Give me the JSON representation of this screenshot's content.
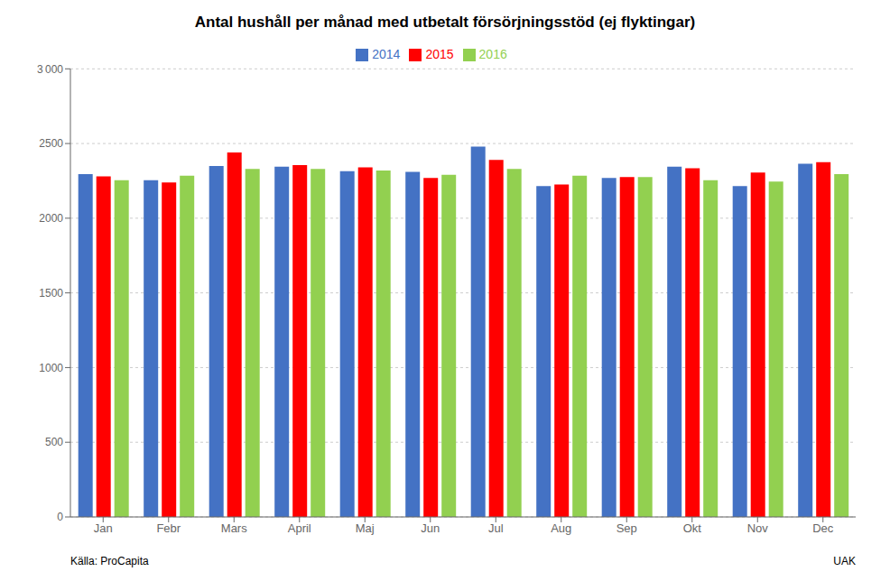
{
  "chart_data": {
    "type": "bar",
    "title": "Antal hushåll per månad med utbetalt försörjningsstöd (ej flyktingar)",
    "categories": [
      "Jan",
      "Febr",
      "Mars",
      "April",
      "Maj",
      "Jun",
      "Jul",
      "Aug",
      "Sep",
      "Okt",
      "Nov",
      "Dec"
    ],
    "series": [
      {
        "name": "2014",
        "color": "#4472C4",
        "values": [
          2295,
          2255,
          2350,
          2345,
          2315,
          2310,
          2480,
          2215,
          2270,
          2345,
          2215,
          2365
        ]
      },
      {
        "name": "2015",
        "color": "#FF0000",
        "values": [
          2280,
          2240,
          2440,
          2355,
          2340,
          2270,
          2390,
          2225,
          2275,
          2335,
          2305,
          2375
        ]
      },
      {
        "name": "2016",
        "color": "#92D050",
        "values": [
          2255,
          2285,
          2330,
          2330,
          2320,
          2290,
          2330,
          2285,
          2275,
          2255,
          2245,
          2295
        ]
      }
    ],
    "ylim": [
      0,
      3000
    ],
    "yticks": [
      0,
      500,
      1000,
      1500,
      2000,
      2500,
      {
        "value": 3000,
        "label": "3 000"
      }
    ],
    "grid": true,
    "legend": "top",
    "annotations": [
      "Källa: ProCapita",
      "UAK"
    ]
  }
}
